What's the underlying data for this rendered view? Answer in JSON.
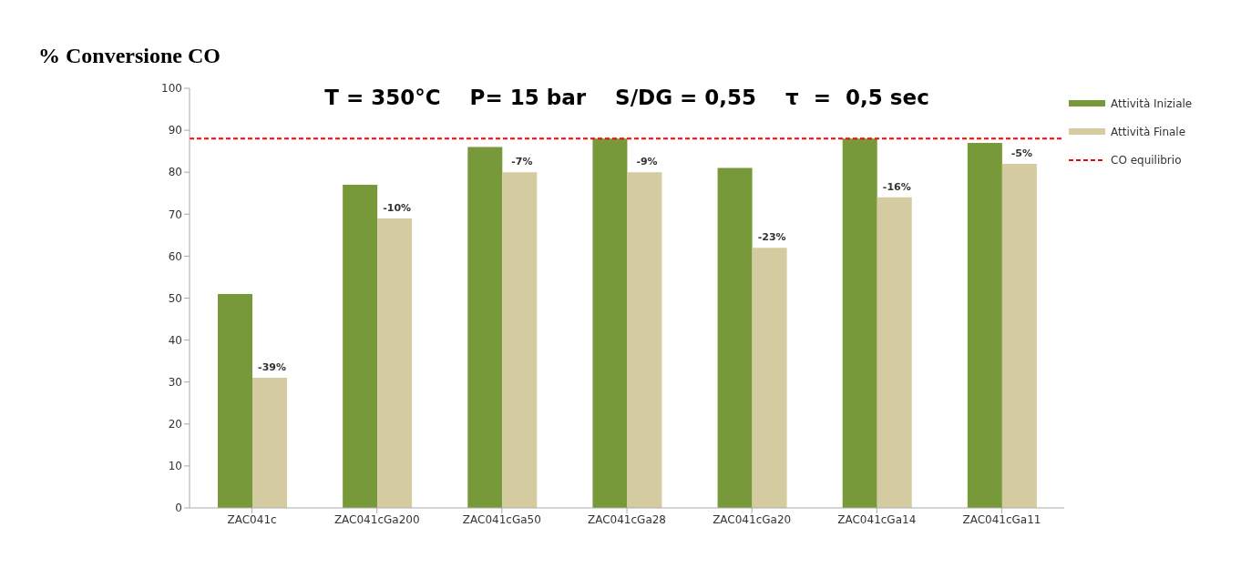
{
  "chart_data": {
    "type": "bar",
    "title": "% Conversione CO",
    "subtitle": "T = 350°C    P= 15 bar    S/DG = 0,55    τ  =  0,5 sec",
    "categories": [
      "ZAC041c",
      "ZAC041cGa200",
      "ZAC041cGa50",
      "ZAC041cGa28",
      "ZAC041cGa20",
      "ZAC041cGa14",
      "ZAC041cGa11"
    ],
    "series": [
      {
        "name": "Attività Iniziale",
        "color": "#77993a",
        "values": [
          51,
          77,
          86,
          88,
          81,
          88,
          87
        ]
      },
      {
        "name": "Attività Finale",
        "color": "#d4cba0",
        "values": [
          31,
          69,
          80,
          80,
          62,
          74,
          82
        ]
      }
    ],
    "annotations": [
      {
        "text": "-39%",
        "x": "ZAC041c",
        "y": 31
      },
      {
        "text": "-10%",
        "x": "ZAC041cGa200",
        "y": 69
      },
      {
        "text": "-7%",
        "x": "ZAC041cGa50",
        "y": 80
      },
      {
        "text": "-9%",
        "x": "ZAC041cGa28",
        "y": 80
      },
      {
        "text": "-23%",
        "x": "ZAC041cGa20",
        "y": 62
      },
      {
        "text": "-16%",
        "x": "ZAC041cGa14",
        "y": 74
      },
      {
        "text": "-5%",
        "x": "ZAC041cGa11",
        "y": 82
      }
    ],
    "ylim": [
      0,
      100
    ],
    "yticks": [
      0,
      10,
      20,
      30,
      40,
      50,
      60,
      70,
      80,
      90,
      100
    ],
    "grid": false,
    "legend": "top right",
    "ref_lines": [
      {
        "axis": "y",
        "value": 88,
        "label": "CO equilibrio",
        "color": "#ff0000",
        "line_style": "dashed"
      }
    ]
  }
}
